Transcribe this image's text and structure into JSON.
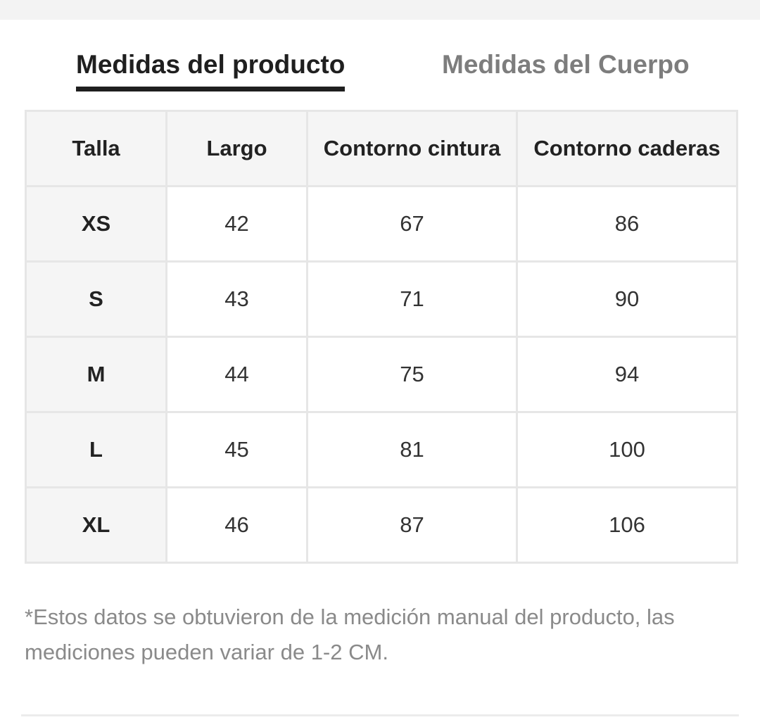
{
  "tabs": {
    "active": "Medidas del producto",
    "inactive": "Medidas del Cuerpo"
  },
  "table": {
    "headers": [
      "Talla",
      "Largo",
      "Contorno cintura",
      "Contorno caderas"
    ],
    "rows": [
      [
        "XS",
        "42",
        "67",
        "86"
      ],
      [
        "S",
        "43",
        "71",
        "90"
      ],
      [
        "M",
        "44",
        "75",
        "94"
      ],
      [
        "L",
        "45",
        "81",
        "100"
      ],
      [
        "XL",
        "46",
        "87",
        "106"
      ]
    ]
  },
  "note": "*Estos datos se obtuvieron de la medición manual del producto, las mediciones pueden variar de 1-2 CM.",
  "colors": {
    "active_tab": "#1f1f1f",
    "inactive_tab": "#7d7d7d",
    "header_bg": "#f5f5f5",
    "border": "#e6e6e6",
    "note_text": "#8a8a8a"
  }
}
